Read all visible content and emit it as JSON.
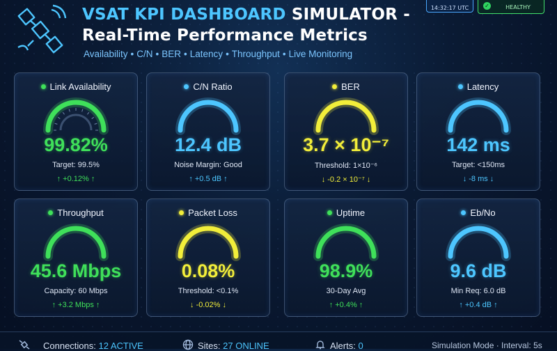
{
  "header": {
    "title_highlight": "VSAT KPI DASHBOARD",
    "title_rest_1": " SIMULATOR -",
    "title_line2": "Real-Time Performance Metrics",
    "subtitle": [
      "Availability",
      "C/N",
      "BER",
      "Latency",
      "Throughput",
      "Live Monitoring"
    ],
    "time": "14:32:17 UTC",
    "status": "HEALTHY"
  },
  "colors": {
    "green": "#3fe05a",
    "cyan": "#4dc6ff",
    "yellow": "#f2ee3a",
    "accent": "#4dc6ff"
  },
  "cards": [
    {
      "label": "Link Availability",
      "value": "99.82%",
      "sub": "Target: 99.5%",
      "delta": "↑ +0.12% ↑",
      "color": "green",
      "level": 0.998
    },
    {
      "label": "C/N Ratio",
      "value": "12.4 dB",
      "sub": "Noise Margin: Good",
      "delta": "↑ +0.5 dB ↑",
      "color": "cyan",
      "level": 1.0
    },
    {
      "label": "BER",
      "value": "3.7 × 10⁻⁷",
      "sub": "Threshold: 1×10⁻⁶",
      "delta": "↓ -0.2 × 10⁻⁷ ↓",
      "color": "yellow",
      "level": 1.0
    },
    {
      "label": "Latency",
      "value": "142 ms",
      "sub": "Target: <150ms",
      "delta": "↓ -8 ms ↓",
      "color": "cyan",
      "level": 1.0
    },
    {
      "label": "Throughput",
      "value": "45.6 Mbps",
      "sub": "Capacity: 60 Mbps",
      "delta": "↑ +3.2 Mbps ↑",
      "color": "green",
      "level": 1.0
    },
    {
      "label": "Packet Loss",
      "value": "0.08%",
      "sub": "Threshold: <0.1%",
      "delta": "↓ -0.02% ↓",
      "color": "yellow",
      "level": 1.0
    },
    {
      "label": "Uptime",
      "value": "98.9%",
      "sub": "30-Day Avg",
      "delta": "↑ +0.4% ↑",
      "color": "green",
      "level": 1.0
    },
    {
      "label": "Eb/No",
      "value": "9.6 dB",
      "sub": "Min Req: 6.0 dB",
      "delta": "↑ +0.4 dB ↑",
      "color": "cyan",
      "level": 1.0
    }
  ],
  "footer": {
    "connections_label": "Connections:",
    "connections_value": "12 ACTIVE",
    "sites_label": "Sites:",
    "sites_value": "27 ONLINE",
    "alerts_label": "Alerts:",
    "alerts_value": "0",
    "mode_text": "Simulation Mode · Interval: 5s"
  }
}
